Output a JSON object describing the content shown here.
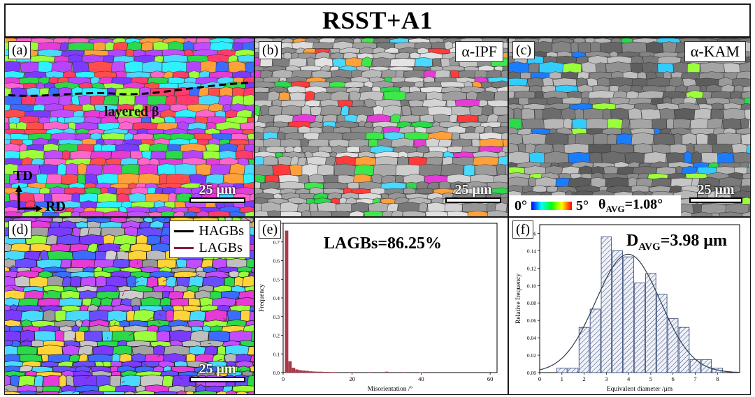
{
  "figure_title": "RSST+A1",
  "panels": {
    "a": {
      "tag": "(a)",
      "annotation": "layered β",
      "axis_td": "TD",
      "axis_rd": "RD",
      "scale": "25 μm"
    },
    "b": {
      "tag": "(b)",
      "label": "α-IPF",
      "scale": "25 μm"
    },
    "c": {
      "tag": "(c)",
      "label": "α-KAM",
      "scale": "25 μm",
      "kam_min": "0°",
      "kam_max": "5°",
      "theta_avg": "θ",
      "theta_sub": "AVG",
      "theta_val": "=1.08°"
    },
    "d": {
      "tag": "(d)",
      "scale": "25 μm",
      "legend": [
        {
          "name": "HAGBs",
          "color": "#000000"
        },
        {
          "name": "LAGBs",
          "color": "#8b1a3a"
        }
      ]
    }
  },
  "chart_data": [
    {
      "panel": "e",
      "tag": "(e)",
      "type": "bar",
      "annotation": "LAGBs=86.25%",
      "xlabel": "Misorientation /°",
      "ylabel": "Frequency",
      "xlim": [
        0,
        62
      ],
      "ylim": [
        0,
        0.8
      ],
      "xticks": [
        "0",
        "20",
        "40",
        "60"
      ],
      "yticks": [
        "0.0",
        "0.1",
        "0.2",
        "0.3",
        "0.4",
        "0.5",
        "0.6",
        "0.7",
        "0.8"
      ],
      "bar_color": "#a83a4a",
      "x": [
        1,
        2,
        3,
        4,
        5,
        6,
        7,
        8,
        9,
        10,
        11,
        12,
        13,
        14,
        15,
        20,
        25,
        30,
        35,
        40
      ],
      "values": [
        0.76,
        0.06,
        0.025,
        0.016,
        0.012,
        0.01,
        0.008,
        0.006,
        0.005,
        0.004,
        0.004,
        0.003,
        0.003,
        0.002,
        0.002,
        0.002,
        0.002,
        0.004,
        0.002,
        0.001
      ]
    },
    {
      "panel": "f",
      "tag": "(f)",
      "type": "bar",
      "annotation_main": "D",
      "annotation_sub": "AVG",
      "annotation_val": "=3.98 μm",
      "xlabel": "Equivalent diameter /μm",
      "ylabel": "Relative frequency",
      "xlim": [
        0,
        9
      ],
      "ylim": [
        0,
        0.17
      ],
      "xticks": [
        "0",
        "1",
        "2",
        "3",
        "4",
        "5",
        "6",
        "7",
        "8"
      ],
      "yticks": [
        "0.00",
        "0.02",
        "0.04",
        "0.06",
        "0.08",
        "0.10",
        "0.12",
        "0.14",
        "0.16"
      ],
      "bar_color": "#2c3e70",
      "x": [
        1.0,
        1.5,
        2.0,
        2.5,
        3.0,
        3.5,
        4.0,
        4.5,
        5.0,
        5.5,
        6.0,
        6.5,
        7.0,
        7.5,
        8.0
      ],
      "values": [
        0.005,
        0.005,
        0.052,
        0.073,
        0.156,
        0.14,
        0.133,
        0.103,
        0.114,
        0.09,
        0.062,
        0.052,
        0.015,
        0.015,
        0.005
      ],
      "fit_mean": 3.98,
      "fit_sd": 1.45,
      "fit_peak": 0.136
    }
  ]
}
